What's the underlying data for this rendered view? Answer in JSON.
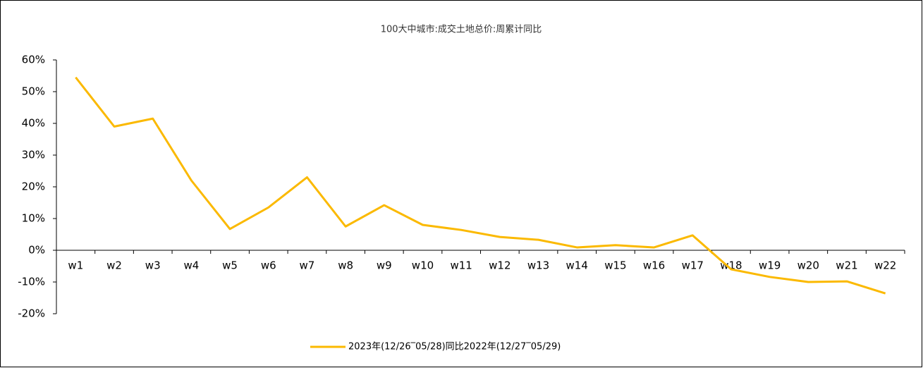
{
  "chart_data": {
    "type": "line",
    "title": "100大中城市:成交土地总价:周累计同比",
    "categories": [
      "w1",
      "w2",
      "w3",
      "w4",
      "w5",
      "w6",
      "w7",
      "w8",
      "w9",
      "w10",
      "w11",
      "w12",
      "w13",
      "w14",
      "w15",
      "w16",
      "w17",
      "w18",
      "w19",
      "w20",
      "w21",
      "w22"
    ],
    "series": [
      {
        "name": "2023年(12/26‾05/28)同比2022年(12/27‾05/29)",
        "color": "#fbb900",
        "values": [
          54.5,
          39,
          41.5,
          22,
          6.7,
          13.5,
          23,
          7.5,
          14.2,
          8,
          6.4,
          4.2,
          3.3,
          0.9,
          1.6,
          0.9,
          4.7,
          -6,
          -8.4,
          -10,
          -9.8,
          -13.6
        ]
      }
    ],
    "ylim": [
      -20,
      60
    ],
    "yticks": [
      {
        "value": -20,
        "label": "-20%"
      },
      {
        "value": -10,
        "label": "-10%"
      },
      {
        "value": 0,
        "label": "0%"
      },
      {
        "value": 10,
        "label": "10%"
      },
      {
        "value": 20,
        "label": "20%"
      },
      {
        "value": 30,
        "label": "30%"
      },
      {
        "value": 40,
        "label": "40%"
      },
      {
        "value": 50,
        "label": "50%"
      },
      {
        "value": 60,
        "label": "60%"
      }
    ],
    "grid": false,
    "legend": "bottom"
  }
}
